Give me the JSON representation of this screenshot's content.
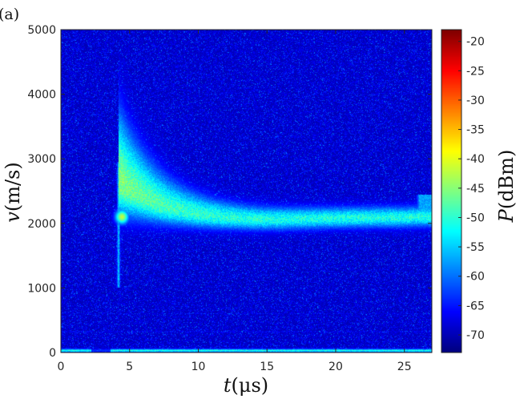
{
  "panel_label": "(a)",
  "chart_data": {
    "type": "heatmap",
    "title": "",
    "xlabel": {
      "symbol": "t",
      "unit": "(μs)"
    },
    "ylabel": {
      "symbol": "v",
      "unit": "(m/s)"
    },
    "xlim": [
      0,
      27
    ],
    "ylim": [
      0,
      5000
    ],
    "x_ticks": [
      0,
      5,
      10,
      15,
      20,
      25
    ],
    "y_ticks": [
      0,
      1000,
      2000,
      3000,
      4000,
      5000
    ],
    "colorbar": {
      "label": {
        "symbol": "P",
        "unit": "(dBm)"
      },
      "range": [
        -73,
        -18
      ],
      "ticks": [
        -20,
        -25,
        -30,
        -35,
        -40,
        -45,
        -50,
        -55,
        -60,
        -65,
        -70
      ],
      "colormap": "jet"
    },
    "background_level_dBm": -70,
    "features": {
      "velocity_trace": {
        "t": [
          4.2,
          5,
          6,
          7,
          8,
          9,
          10,
          11,
          12,
          13,
          14,
          15,
          16,
          17,
          18,
          19,
          20,
          21,
          22,
          23,
          24,
          25,
          26,
          27
        ],
        "v": [
          2650,
          2520,
          2400,
          2300,
          2230,
          2180,
          2140,
          2110,
          2090,
          2075,
          2065,
          2060,
          2060,
          2065,
          2070,
          2075,
          2080,
          2085,
          2085,
          2090,
          2090,
          2090,
          2100,
          2100
        ],
        "peak_dBm": -45
      },
      "onset_flash": {
        "t": 4.2,
        "v_range": [
          1000,
          2950
        ],
        "peak_dBm": -42
      },
      "late_burst": {
        "t_range": [
          25.8,
          27
        ],
        "v_range": [
          2000,
          2450
        ],
        "peak_dBm": -55
      },
      "baseline_line": {
        "v": 30,
        "peak_dBm": -48
      }
    }
  }
}
